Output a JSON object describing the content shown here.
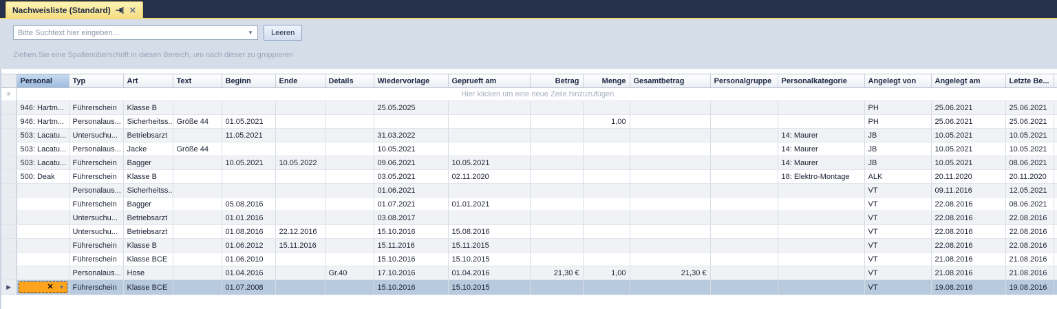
{
  "tab": {
    "title": "Nachweisliste (Standard)"
  },
  "toolbar": {
    "search_placeholder": "Bitte Suchtext hier eingeben...",
    "clear_button": "Leeren"
  },
  "group_panel": {
    "hint": "Ziehen Sie eine Spaltenüberschrift in diesen Bereich, um nach dieser zu gruppieren"
  },
  "grid": {
    "new_row_hint": "Hier klicken um eine neue Zeile hinzuzufügen",
    "new_row_indicator_glyph": "✳",
    "selected_row_indicator_glyph": "▶",
    "editor": {
      "clear_glyph": "✕",
      "dropdown_glyph": "▼"
    },
    "columns": [
      {
        "key": "personal",
        "label": "Personal",
        "align": "left",
        "selected": true
      },
      {
        "key": "typ",
        "label": "Typ",
        "align": "left"
      },
      {
        "key": "art",
        "label": "Art",
        "align": "left"
      },
      {
        "key": "text",
        "label": "Text",
        "align": "left"
      },
      {
        "key": "beginn",
        "label": "Beginn",
        "align": "left"
      },
      {
        "key": "ende",
        "label": "Ende",
        "align": "left"
      },
      {
        "key": "details",
        "label": "Details",
        "align": "left"
      },
      {
        "key": "wiedervorlage",
        "label": "Wiedervorlage",
        "align": "left"
      },
      {
        "key": "geprueft-am",
        "label": "Geprueft am",
        "align": "left"
      },
      {
        "key": "betrag",
        "label": "Betrag",
        "align": "right",
        "header_align": "right"
      },
      {
        "key": "menge",
        "label": "Menge",
        "align": "right",
        "header_align": "right"
      },
      {
        "key": "gesamtbetrag",
        "label": "Gesamtbetrag",
        "align": "right",
        "header_align": "left"
      },
      {
        "key": "personalgruppe",
        "label": "Personalgruppe",
        "align": "left"
      },
      {
        "key": "personalkategorie",
        "label": "Personalkategorie",
        "align": "left"
      },
      {
        "key": "angelegt-von",
        "label": "Angelegt von",
        "align": "left"
      },
      {
        "key": "angelegt-am",
        "label": "Angelegt am",
        "align": "left"
      },
      {
        "key": "letzte-bearbeitung",
        "label": "Letzte Be...",
        "align": "left"
      }
    ],
    "rows": [
      {
        "cells": [
          "946: Hartm...",
          "Führerschein",
          "Klasse B",
          "",
          "",
          "",
          "",
          "25.05.2025",
          "",
          "",
          "",
          "",
          "",
          "",
          "PH",
          "25.06.2021",
          "25.06.2021"
        ]
      },
      {
        "cells": [
          "946: Hartm...",
          "Personalaus...",
          "Sicherheitss...",
          "Größe 44",
          "01.05.2021",
          "",
          "",
          "",
          "",
          "",
          "1,00",
          "",
          "",
          "",
          "PH",
          "25.06.2021",
          "25.06.2021"
        ]
      },
      {
        "cells": [
          "503: Lacatu...",
          "Untersuchu...",
          "Betriebsarzt",
          "",
          "11.05.2021",
          "",
          "",
          "31.03.2022",
          "",
          "",
          "",
          "",
          "",
          "14: Maurer",
          "JB",
          "10.05.2021",
          "10.05.2021"
        ]
      },
      {
        "cells": [
          "503: Lacatu...",
          "Personalaus...",
          "Jacke",
          "Größe 44",
          "",
          "",
          "",
          "10.05.2021",
          "",
          "",
          "",
          "",
          "",
          "14: Maurer",
          "JB",
          "10.05.2021",
          "10.05.2021"
        ]
      },
      {
        "cells": [
          "503: Lacatu...",
          "Führerschein",
          "Bagger",
          "",
          "10.05.2021",
          "10.05.2022",
          "",
          "09.06.2021",
          "10.05.2021",
          "",
          "",
          "",
          "",
          "14: Maurer",
          "JB",
          "10.05.2021",
          "08.06.2021"
        ]
      },
      {
        "cells": [
          "500: Deak",
          "Führerschein",
          "Klasse B",
          "",
          "",
          "",
          "",
          "03.05.2021",
          "02.11.2020",
          "",
          "",
          "",
          "",
          "18: Elektro-Montage",
          "ALK",
          "20.11.2020",
          "20.11.2020"
        ]
      },
      {
        "cells": [
          "",
          "Personalaus...",
          "Sicherheitss...",
          "",
          "",
          "",
          "",
          "01.06.2021",
          "",
          "",
          "",
          "",
          "",
          "",
          "VT",
          "09.11.2016",
          "12.05.2021"
        ]
      },
      {
        "cells": [
          "",
          "Führerschein",
          "Bagger",
          "",
          "05.08.2016",
          "",
          "",
          "01.07.2021",
          "01.01.2021",
          "",
          "",
          "",
          "",
          "",
          "VT",
          "22.08.2016",
          "08.06.2021"
        ]
      },
      {
        "cells": [
          "",
          "Untersuchu...",
          "Betriebsarzt",
          "",
          "01.01.2016",
          "",
          "",
          "03.08.2017",
          "",
          "",
          "",
          "",
          "",
          "",
          "VT",
          "22.08.2016",
          "22.08.2016"
        ]
      },
      {
        "cells": [
          "",
          "Untersuchu...",
          "Betriebsarzt",
          "",
          "01.08.2016",
          "22.12.2016",
          "",
          "15.10.2016",
          "15.08.2016",
          "",
          "",
          "",
          "",
          "",
          "VT",
          "22.08.2016",
          "22.08.2016"
        ]
      },
      {
        "cells": [
          "",
          "Führerschein",
          "Klasse B",
          "",
          "01.06.2012",
          "15.11.2016",
          "",
          "15.11.2016",
          "15.11.2015",
          "",
          "",
          "",
          "",
          "",
          "VT",
          "22.08.2016",
          "22.08.2016"
        ]
      },
      {
        "cells": [
          "",
          "Führerschein",
          "Klasse BCE",
          "",
          "01.06.2010",
          "",
          "",
          "15.10.2016",
          "15.10.2015",
          "",
          "",
          "",
          "",
          "",
          "VT",
          "21.08.2016",
          "21.08.2016"
        ]
      },
      {
        "cells": [
          "",
          "Personalaus...",
          "Hose",
          "",
          "01.04.2016",
          "",
          "Gr.40",
          "17.10.2016",
          "01.04.2016",
          "21,30 €",
          "1,00",
          "21,30 €",
          "",
          "",
          "VT",
          "21.08.2016",
          "21.08.2016"
        ]
      },
      {
        "cells": [
          "",
          "Führerschein",
          "Klasse BCE",
          "",
          "01.07.2008",
          "",
          "",
          "15.10.2016",
          "15.10.2015",
          "",
          "",
          "",
          "",
          "",
          "VT",
          "19.08.2016",
          "19.08.2016"
        ],
        "selected": true,
        "editing_column": "personal"
      }
    ]
  },
  "colors": {
    "tab_bar_background": "#25304a",
    "active_tab_yellow": "#f5de83",
    "panel_background": "#d5dde9",
    "selected_row": "#b7cade",
    "selected_header": "#9dbbdd",
    "editor_orange": "#ffa41c",
    "alt_row": "#f1f2f5"
  }
}
